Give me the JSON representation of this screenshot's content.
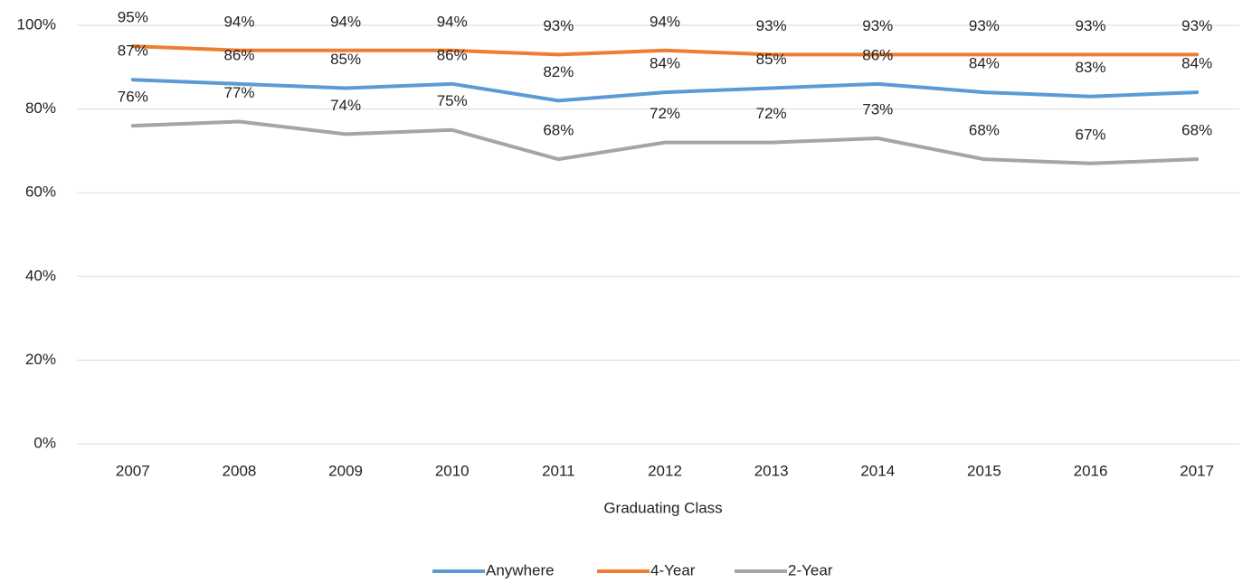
{
  "chart_data": {
    "type": "line",
    "x_label": "Graduating Class",
    "categories": [
      "2007",
      "2008",
      "2009",
      "2010",
      "2011",
      "2012",
      "2013",
      "2014",
      "2015",
      "2016",
      "2017"
    ],
    "series": [
      {
        "name": "Anywhere",
        "color": "#5b9bd5",
        "values": [
          87,
          86,
          85,
          86,
          82,
          84,
          85,
          86,
          84,
          83,
          84
        ],
        "value_labels": [
          "87%",
          "86%",
          "85%",
          "86%",
          "82%",
          "84%",
          "85%",
          "86%",
          "84%",
          "83%",
          "84%"
        ]
      },
      {
        "name": "4-Year",
        "color": "#ed7d31",
        "values": [
          95,
          94,
          94,
          94,
          93,
          94,
          93,
          93,
          93,
          93,
          93
        ],
        "value_labels": [
          "95%",
          "94%",
          "94%",
          "94%",
          "93%",
          "94%",
          "93%",
          "93%",
          "93%",
          "93%",
          "93%"
        ]
      },
      {
        "name": "2-Year",
        "color": "#a5a5a5",
        "values": [
          76,
          77,
          74,
          75,
          68,
          72,
          72,
          73,
          68,
          67,
          68
        ],
        "value_labels": [
          "76%",
          "77%",
          "74%",
          "75%",
          "68%",
          "72%",
          "72%",
          "73%",
          "68%",
          "67%",
          "68%"
        ]
      }
    ],
    "ylim": [
      0,
      100
    ],
    "yticks": [
      {
        "value": 0,
        "label": "0%"
      },
      {
        "value": 20,
        "label": "20%"
      },
      {
        "value": 40,
        "label": "40%"
      },
      {
        "value": 60,
        "label": "60%"
      },
      {
        "value": 80,
        "label": "80%"
      },
      {
        "value": 100,
        "label": "100%"
      }
    ],
    "grid": true,
    "legend": "bottom"
  }
}
